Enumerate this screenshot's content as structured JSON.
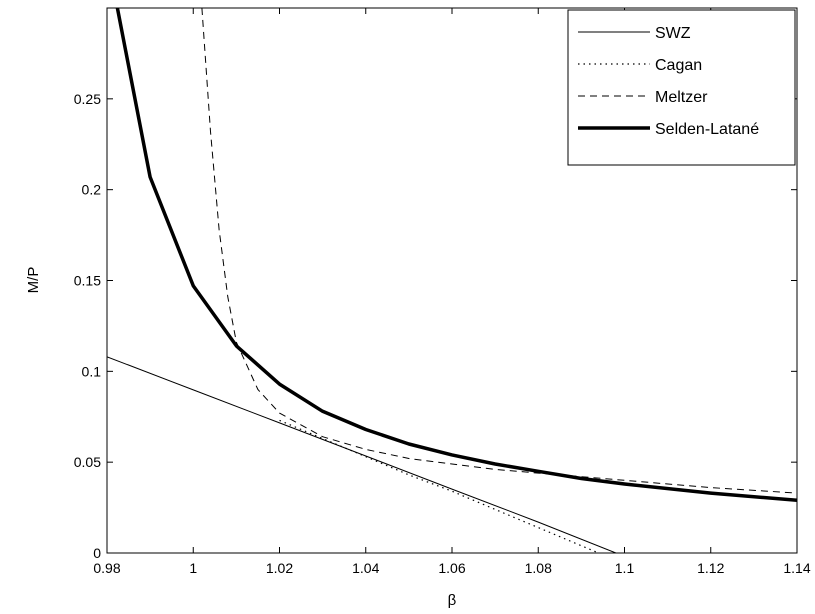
{
  "chart_data": {
    "type": "line",
    "title": "",
    "xlabel": "β",
    "ylabel": "M/P",
    "xlim": [
      0.98,
      1.14
    ],
    "ylim": [
      0,
      0.3
    ],
    "grid": false,
    "legend_position": "top-right",
    "x_ticks": [
      "0.98",
      "1",
      "1.02",
      "1.04",
      "1.06",
      "1.08",
      "1.1",
      "1.12",
      "1.14"
    ],
    "y_ticks": [
      "0",
      "0.05",
      "0.1",
      "0.15",
      "0.2",
      "0.25"
    ],
    "series": [
      {
        "name": "SWZ",
        "style": "solid-thin",
        "color": "#000000",
        "x": [
          0.98,
          1.0,
          1.02,
          1.04,
          1.06,
          1.08,
          1.098
        ],
        "y": [
          0.108,
          0.0898,
          0.0716,
          0.0534,
          0.0352,
          0.017,
          0.0
        ]
      },
      {
        "name": "Cagan",
        "style": "dotted",
        "color": "#000000",
        "x": [
          1.02,
          1.03,
          1.04,
          1.05,
          1.06,
          1.07,
          1.08,
          1.094
        ],
        "y": [
          0.073,
          0.063,
          0.053,
          0.043,
          0.034,
          0.024,
          0.014,
          0.0
        ]
      },
      {
        "name": "Meltzer",
        "style": "dashed",
        "color": "#000000",
        "x": [
          1.002,
          1.004,
          1.006,
          1.008,
          1.01,
          1.015,
          1.02,
          1.03,
          1.04,
          1.05,
          1.06,
          1.07,
          1.08,
          1.1,
          1.12,
          1.14
        ],
        "y": [
          0.3,
          0.232,
          0.178,
          0.141,
          0.116,
          0.09,
          0.077,
          0.064,
          0.057,
          0.052,
          0.049,
          0.046,
          0.044,
          0.04,
          0.036,
          0.033
        ]
      },
      {
        "name": "Selden-Latané",
        "style": "solid-thick",
        "color": "#000000",
        "x": [
          0.9824,
          0.99,
          1.0,
          1.01,
          1.02,
          1.03,
          1.04,
          1.05,
          1.06,
          1.07,
          1.08,
          1.09,
          1.1,
          1.12,
          1.14
        ],
        "y": [
          0.3,
          0.207,
          0.147,
          0.114,
          0.093,
          0.078,
          0.068,
          0.06,
          0.054,
          0.049,
          0.045,
          0.041,
          0.038,
          0.033,
          0.029
        ]
      }
    ]
  }
}
